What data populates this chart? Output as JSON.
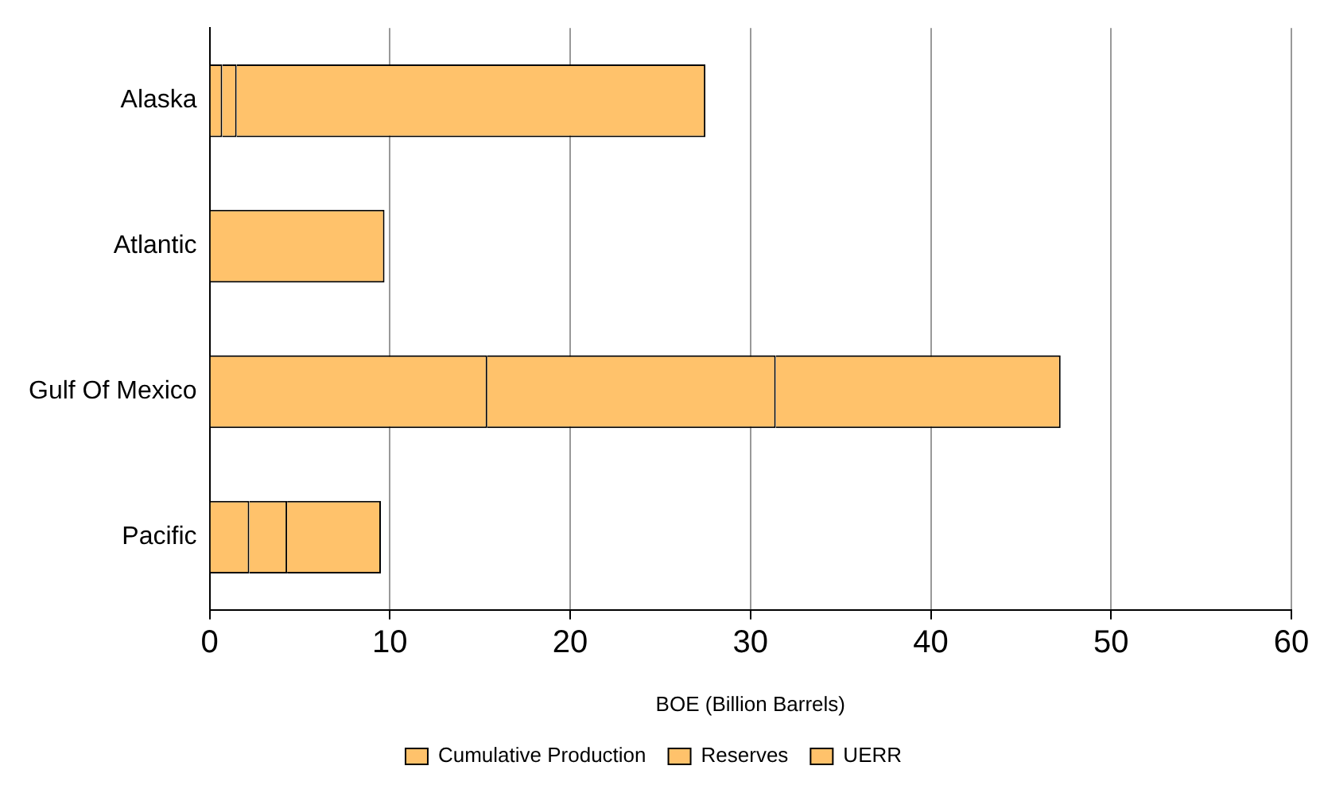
{
  "chart_data": {
    "type": "bar",
    "orientation": "horizontal",
    "stacked": true,
    "xlabel": "BOE (Billion Barrels)",
    "categories": [
      "Alaska",
      "Atlantic",
      "Gulf Of Mexico",
      "Pacific"
    ],
    "series": [
      {
        "name": "Cumulative Production",
        "color": "#ffc26b",
        "values": [
          0.7,
          0,
          15.4,
          2.2
        ]
      },
      {
        "name": "Reserves",
        "color": "#ffc26b",
        "values": [
          0.8,
          0,
          16.0,
          2.1
        ]
      },
      {
        "name": "UERR",
        "color": "#ffc26b",
        "values": [
          26.0,
          9.7,
          15.8,
          5.2
        ]
      }
    ],
    "xlim": [
      0,
      60
    ],
    "xticks": [
      0,
      10,
      20,
      30,
      40,
      50,
      60
    ],
    "grid": "x",
    "legend": "bottom"
  }
}
